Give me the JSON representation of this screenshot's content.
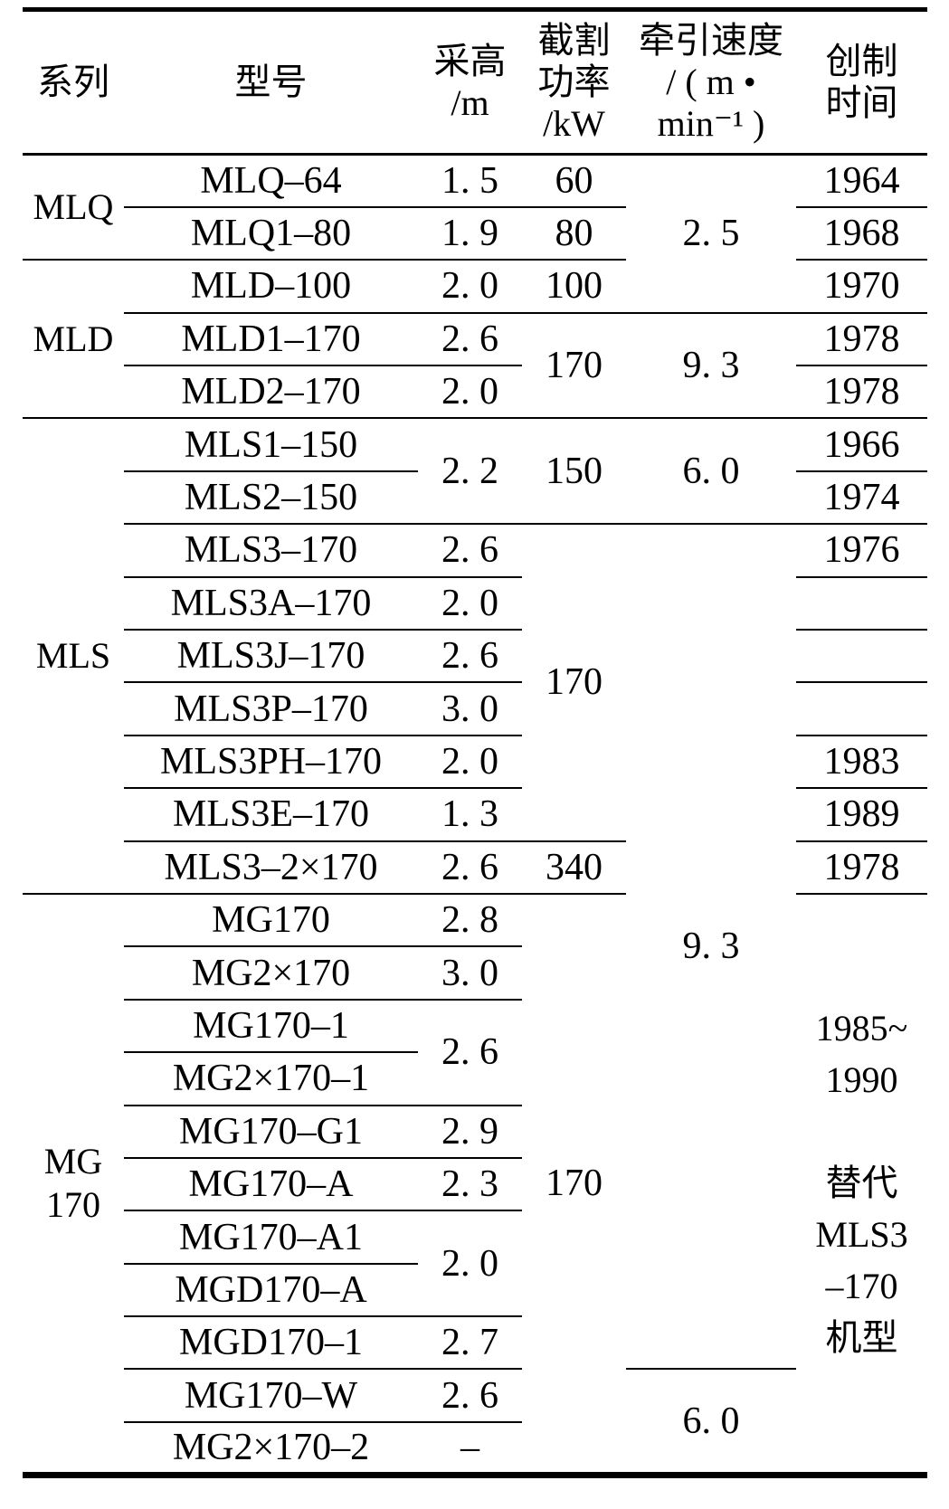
{
  "header": {
    "series": "系列",
    "model": "型号",
    "height": "采高\n/m",
    "power": "截割\n功率\n/kW",
    "speed": "牵引速度\n/ ( m •\nmin⁻¹ )",
    "year": "创制\n时间"
  },
  "rows": [
    {
      "series": "MLQ",
      "model": "MLQ–64",
      "height": "1. 5",
      "power": "60",
      "speed": "2. 5",
      "year": "1964"
    },
    {
      "model": "MLQ1–80",
      "height": "1. 9",
      "power": "80",
      "year": "1968"
    },
    {
      "series": "MLD",
      "model": "MLD–100",
      "height": "2. 0",
      "power": "100",
      "year": "1970"
    },
    {
      "model": "MLD1–170",
      "height": "2. 6",
      "power": "170",
      "speed": "9. 3",
      "year": "1978"
    },
    {
      "model": "MLD2–170",
      "height": "2. 0",
      "year": "1978"
    },
    {
      "series": "MLS",
      "model": "MLS1–150",
      "height": "2. 2",
      "power": "150",
      "speed": "6. 0",
      "year": "1966"
    },
    {
      "model": "MLS2–150",
      "year": "1974"
    },
    {
      "model": "MLS3–170",
      "height": "2. 6",
      "power": "170",
      "speed": "9. 3",
      "year": "1976"
    },
    {
      "model": "MLS3A–170",
      "height": "2. 0",
      "year": ""
    },
    {
      "model": "MLS3J–170",
      "height": "2. 6",
      "year": ""
    },
    {
      "model": "MLS3P–170",
      "height": "3. 0",
      "year": ""
    },
    {
      "model": "MLS3PH–170",
      "height": "2. 0",
      "year": "1983"
    },
    {
      "model": "MLS3E–170",
      "height": "1. 3",
      "year": "1989"
    },
    {
      "model": "MLS3–2×170",
      "height": "2. 6",
      "power": "340",
      "year": "1978"
    },
    {
      "series": "MG\n170",
      "model": "MG170",
      "height": "2. 8",
      "power": "170",
      "year": "1985~\n1990\n\n替代\nMLS3\n–170\n机型"
    },
    {
      "model": "MG2×170",
      "height": "3. 0"
    },
    {
      "model": "MG170–1",
      "height": "2. 6"
    },
    {
      "model": "MG2×170–1"
    },
    {
      "model": "MG170–G1",
      "height": "2. 9"
    },
    {
      "model": "MG170–A",
      "height": "2. 3"
    },
    {
      "model": "MG170–A1",
      "height": "2. 0"
    },
    {
      "model": "MGD170–A"
    },
    {
      "model": "MGD170–1",
      "height": "2. 7"
    },
    {
      "model": "MG170–W",
      "height": "2. 6",
      "speed": "6. 0"
    },
    {
      "model": "MG2×170–2",
      "height": "–"
    }
  ]
}
